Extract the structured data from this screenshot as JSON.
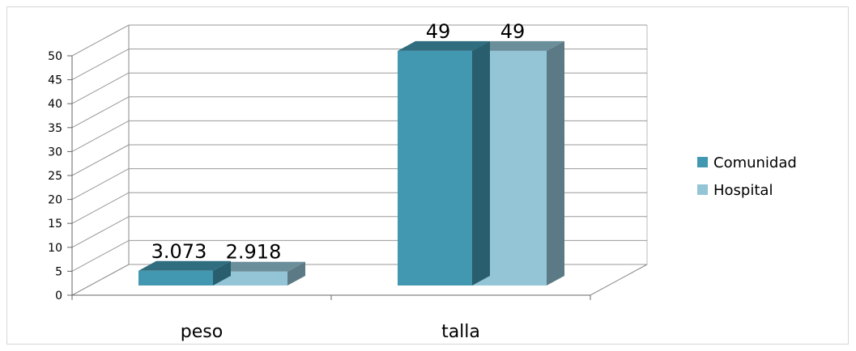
{
  "chart_data": {
    "type": "bar",
    "categories": [
      "peso",
      "talla"
    ],
    "series": [
      {
        "name": "Comunidad",
        "values": [
          3.073,
          49
        ],
        "labels": [
          "3.073",
          "49"
        ],
        "color": "#4198b0"
      },
      {
        "name": "Hospital",
        "values": [
          2.918,
          49
        ],
        "labels": [
          "2.918",
          "49"
        ],
        "color": "#93c5d6"
      }
    ],
    "title": "",
    "xlabel": "",
    "ylabel": "",
    "ylim": [
      0,
      50
    ],
    "yticks": [
      0,
      5,
      10,
      15,
      20,
      25,
      30,
      35,
      40,
      45,
      50
    ],
    "grid": true,
    "legend": "right",
    "style": "3d-clustered-column"
  }
}
